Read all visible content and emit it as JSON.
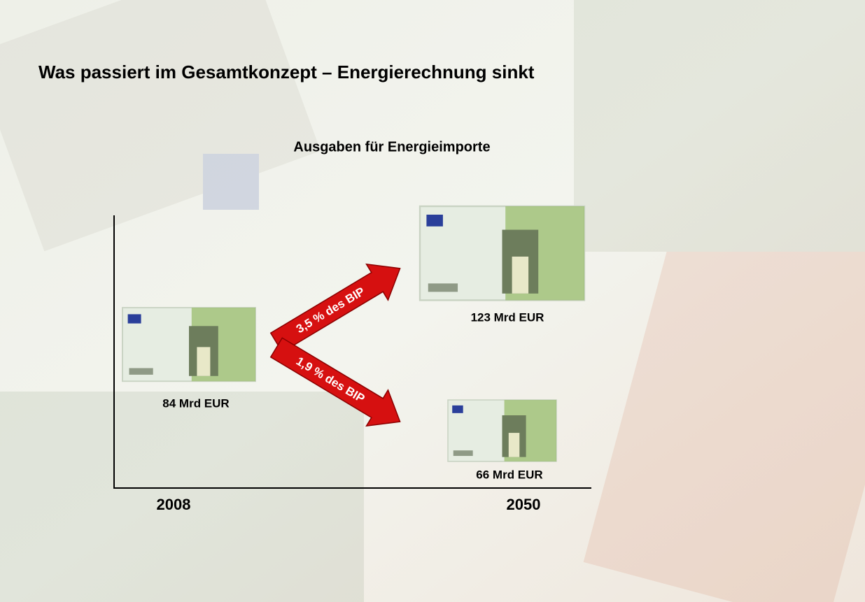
{
  "title": "Was passiert im Gesamtkonzept – Energierechnung sinkt",
  "subtitle": "Ausgaben für Energieimporte",
  "notes": [
    {
      "label": "84 Mrd  EUR"
    },
    {
      "label": "123 Mrd  EUR"
    },
    {
      "label": "66 Mrd  EUR"
    }
  ],
  "arrows": [
    {
      "label": "3,5 % des BIP"
    },
    {
      "label": "1,9 % des BIP"
    }
  ],
  "axis": {
    "labels": [
      "2008",
      "2050"
    ]
  }
}
